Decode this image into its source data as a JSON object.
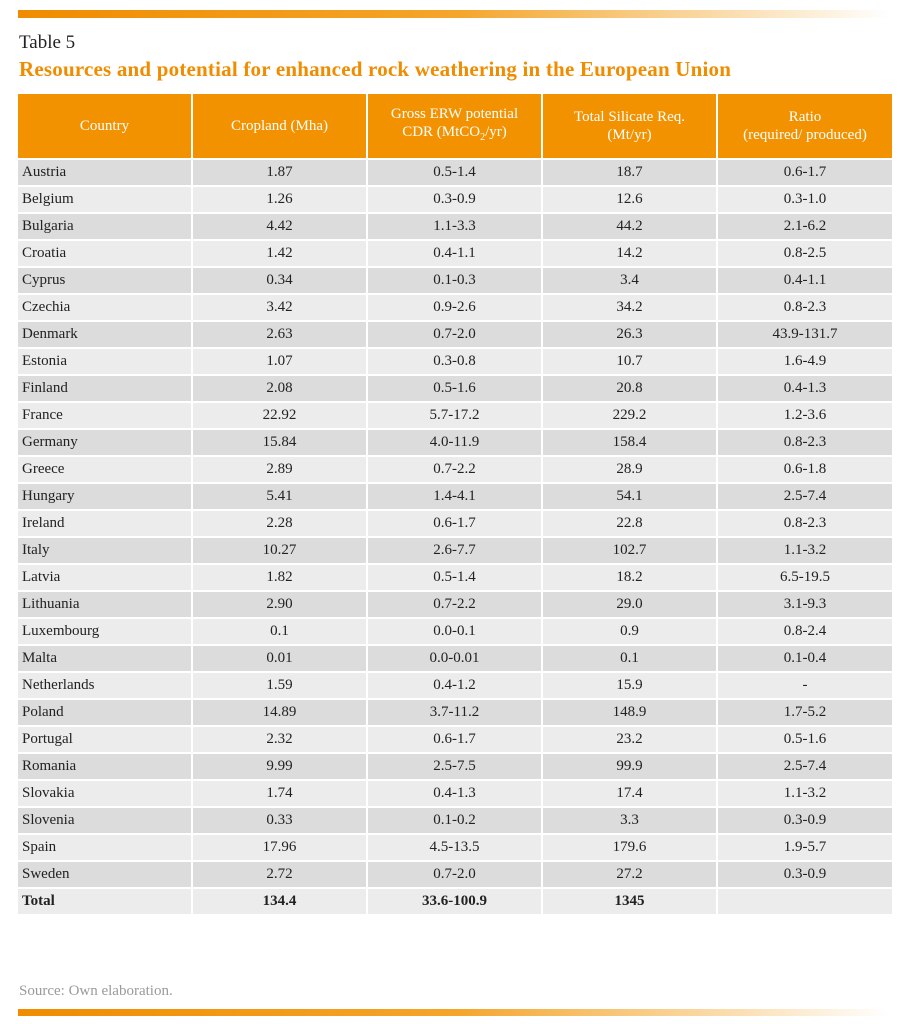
{
  "table_label": "Table 5",
  "title": "Resources and potential for enhanced rock weathering in the European Union",
  "headers": {
    "country": "Country",
    "cropland": "Cropland (Mha)",
    "gross_line1": "Gross ERW potential",
    "gross_line2_pre": "CDR (MtCO",
    "gross_line2_sub": "2",
    "gross_line2_post": "/yr)",
    "silicate_line1": "Total Silicate Req.",
    "silicate_line2": "(Mt/yr)",
    "ratio_line1": "Ratio",
    "ratio_line2": "(required/ produced)"
  },
  "rows": [
    {
      "country": "Austria",
      "cropland": "1.87",
      "cdr": "0.5-1.4",
      "silicate": "18.7",
      "ratio": "0.6-1.7"
    },
    {
      "country": "Belgium",
      "cropland": "1.26",
      "cdr": "0.3-0.9",
      "silicate": "12.6",
      "ratio": "0.3-1.0"
    },
    {
      "country": "Bulgaria",
      "cropland": "4.42",
      "cdr": "1.1-3.3",
      "silicate": "44.2",
      "ratio": "2.1-6.2"
    },
    {
      "country": "Croatia",
      "cropland": "1.42",
      "cdr": "0.4-1.1",
      "silicate": "14.2",
      "ratio": "0.8-2.5"
    },
    {
      "country": "Cyprus",
      "cropland": "0.34",
      "cdr": "0.1-0.3",
      "silicate": "3.4",
      "ratio": "0.4-1.1"
    },
    {
      "country": "Czechia",
      "cropland": "3.42",
      "cdr": "0.9-2.6",
      "silicate": "34.2",
      "ratio": "0.8-2.3"
    },
    {
      "country": "Denmark",
      "cropland": "2.63",
      "cdr": "0.7-2.0",
      "silicate": "26.3",
      "ratio": "43.9-131.7"
    },
    {
      "country": "Estonia",
      "cropland": "1.07",
      "cdr": "0.3-0.8",
      "silicate": "10.7",
      "ratio": "1.6-4.9"
    },
    {
      "country": "Finland",
      "cropland": "2.08",
      "cdr": "0.5-1.6",
      "silicate": "20.8",
      "ratio": "0.4-1.3"
    },
    {
      "country": "France",
      "cropland": "22.92",
      "cdr": "5.7-17.2",
      "silicate": "229.2",
      "ratio": "1.2-3.6"
    },
    {
      "country": "Germany",
      "cropland": "15.84",
      "cdr": "4.0-11.9",
      "silicate": "158.4",
      "ratio": "0.8-2.3"
    },
    {
      "country": "Greece",
      "cropland": "2.89",
      "cdr": "0.7-2.2",
      "silicate": "28.9",
      "ratio": "0.6-1.8"
    },
    {
      "country": "Hungary",
      "cropland": "5.41",
      "cdr": "1.4-4.1",
      "silicate": "54.1",
      "ratio": "2.5-7.4"
    },
    {
      "country": "Ireland",
      "cropland": "2.28",
      "cdr": "0.6-1.7",
      "silicate": "22.8",
      "ratio": "0.8-2.3"
    },
    {
      "country": "Italy",
      "cropland": "10.27",
      "cdr": "2.6-7.7",
      "silicate": "102.7",
      "ratio": "1.1-3.2"
    },
    {
      "country": "Latvia",
      "cropland": "1.82",
      "cdr": "0.5-1.4",
      "silicate": "18.2",
      "ratio": "6.5-19.5"
    },
    {
      "country": "Lithuania",
      "cropland": "2.90",
      "cdr": "0.7-2.2",
      "silicate": "29.0",
      "ratio": "3.1-9.3"
    },
    {
      "country": "Luxembourg",
      "cropland": "0.1",
      "cdr": "0.0-0.1",
      "silicate": "0.9",
      "ratio": "0.8-2.4"
    },
    {
      "country": "Malta",
      "cropland": "0.01",
      "cdr": "0.0-0.01",
      "silicate": "0.1",
      "ratio": "0.1-0.4"
    },
    {
      "country": "Netherlands",
      "cropland": "1.59",
      "cdr": "0.4-1.2",
      "silicate": "15.9",
      "ratio": "-"
    },
    {
      "country": "Poland",
      "cropland": "14.89",
      "cdr": "3.7-11.2",
      "silicate": "148.9",
      "ratio": "1.7-5.2"
    },
    {
      "country": "Portugal",
      "cropland": "2.32",
      "cdr": "0.6-1.7",
      "silicate": "23.2",
      "ratio": "0.5-1.6"
    },
    {
      "country": "Romania",
      "cropland": "9.99",
      "cdr": "2.5-7.5",
      "silicate": "99.9",
      "ratio": "2.5-7.4"
    },
    {
      "country": "Slovakia",
      "cropland": "1.74",
      "cdr": "0.4-1.3",
      "silicate": "17.4",
      "ratio": "1.1-3.2"
    },
    {
      "country": "Slovenia",
      "cropland": "0.33",
      "cdr": "0.1-0.2",
      "silicate": "3.3",
      "ratio": "0.3-0.9"
    },
    {
      "country": "Spain",
      "cropland": "17.96",
      "cdr": "4.5-13.5",
      "silicate": "179.6",
      "ratio": "1.9-5.7"
    },
    {
      "country": "Sweden",
      "cropland": "2.72",
      "cdr": "0.7-2.0",
      "silicate": "27.2",
      "ratio": "0.3-0.9"
    }
  ],
  "total": {
    "country": "Total",
    "cropland": "134.4",
    "cdr": "33.6-100.9",
    "silicate": "1345",
    "ratio": ""
  },
  "source": "Source: Own elaboration.",
  "colors": {
    "accent": "#f39200",
    "title": "#f08c00",
    "row_dark": "#dcdcdc",
    "row_light": "#ececec",
    "source_text": "#9a9a9a"
  }
}
